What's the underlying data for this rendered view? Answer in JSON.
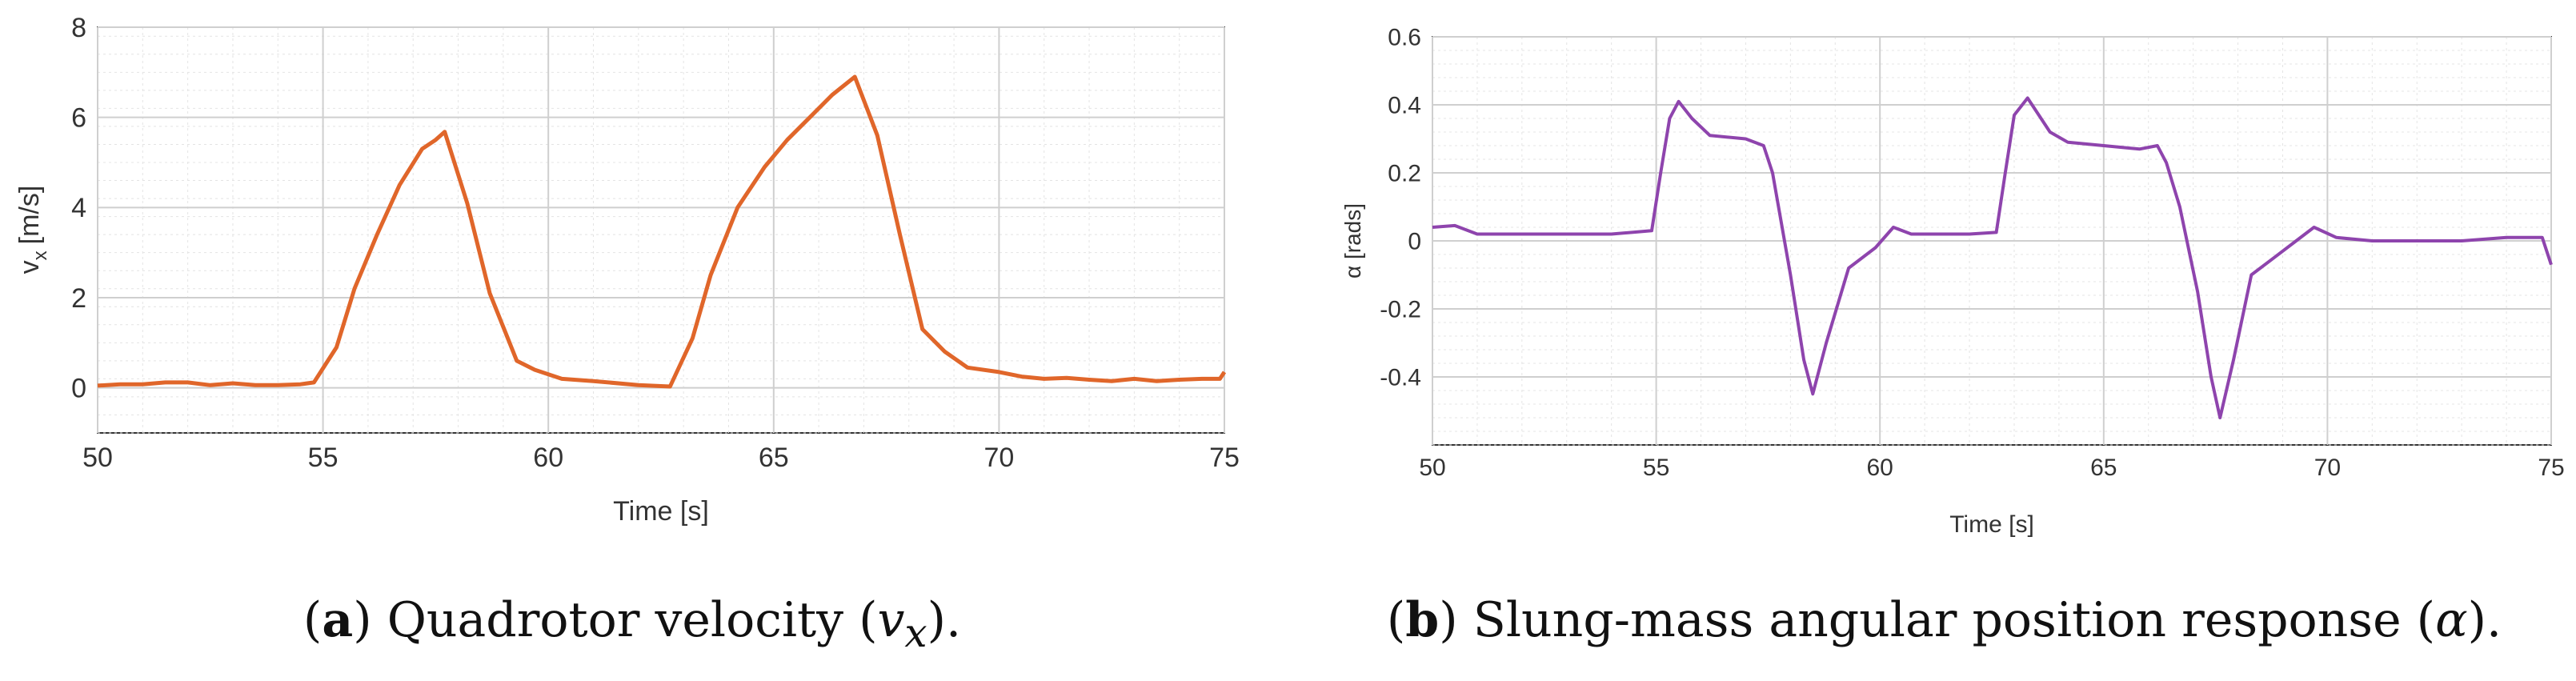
{
  "chart_data": [
    {
      "type": "line",
      "panel_label": "a",
      "caption": "Quadrotor velocity",
      "caption_symbol": "v",
      "caption_subscript": "x",
      "xlabel": "Time [s]",
      "ylabel": "v",
      "ylabel_subscript": "x",
      "ylabel_unit": "[m/s]",
      "xlim": [
        50,
        75
      ],
      "ylim": [
        -1,
        8
      ],
      "xticks": [
        50,
        55,
        60,
        65,
        70,
        75
      ],
      "yticks": [
        0,
        2,
        4,
        6,
        8
      ],
      "grid": true,
      "minor_grid": true,
      "color": "#e0662a",
      "series": [
        {
          "x": [
            50,
            50.5,
            51,
            51.5,
            52,
            52.5,
            53,
            53.5,
            54,
            54.5,
            54.8,
            55.3,
            55.7,
            56.2,
            56.7,
            57.2,
            57.5,
            57.7,
            58.2,
            58.7,
            59.3,
            59.7,
            60.3,
            61,
            62,
            62.7,
            63.2,
            63.6,
            64.2,
            64.8,
            65.3,
            65.8,
            66.3,
            66.8,
            67.3,
            67.8,
            68.3,
            68.8,
            69.3,
            70,
            70.5,
            71,
            71.5,
            72,
            72.5,
            73,
            73.5,
            74,
            74.5,
            74.9,
            75
          ],
          "y": [
            0.05,
            0.08,
            0.08,
            0.12,
            0.12,
            0.06,
            0.1,
            0.06,
            0.06,
            0.08,
            0.12,
            0.9,
            2.2,
            3.4,
            4.5,
            5.3,
            5.5,
            5.68,
            4.1,
            2.1,
            0.6,
            0.4,
            0.2,
            0.15,
            0.06,
            0.03,
            1.1,
            2.5,
            4.0,
            4.9,
            5.5,
            6.0,
            6.5,
            6.9,
            5.6,
            3.4,
            1.3,
            0.8,
            0.45,
            0.35,
            0.25,
            0.2,
            0.22,
            0.18,
            0.15,
            0.2,
            0.15,
            0.18,
            0.2,
            0.2,
            0.35
          ]
        }
      ]
    },
    {
      "type": "line",
      "panel_label": "b",
      "caption": "Slung-mass angular position response",
      "caption_symbol": "α",
      "xlabel": "Time [s]",
      "ylabel": "α [rads]",
      "xlim": [
        50,
        75
      ],
      "ylim": [
        -0.6,
        0.6
      ],
      "xticks": [
        50,
        55,
        60,
        65,
        70,
        75
      ],
      "yticks": [
        -0.4,
        -0.2,
        0,
        0.2,
        0.4,
        0.6
      ],
      "grid": true,
      "minor_grid": true,
      "color": "#8e44ad",
      "series": [
        {
          "x": [
            50,
            50.5,
            51,
            52,
            53,
            54,
            54.9,
            55.1,
            55.3,
            55.5,
            55.8,
            56.2,
            57,
            57.4,
            57.6,
            58,
            58.3,
            58.5,
            58.8,
            59.3,
            59.9,
            60.3,
            60.7,
            61.3,
            62,
            62.6,
            62.8,
            63,
            63.3,
            63.5,
            63.8,
            64.2,
            65,
            65.8,
            66.2,
            66.4,
            66.7,
            67.1,
            67.4,
            67.6,
            67.9,
            68.3,
            68.8,
            69.3,
            69.7,
            70.2,
            71,
            72,
            73,
            74,
            74.8,
            75
          ],
          "y": [
            0.04,
            0.045,
            0.02,
            0.02,
            0.02,
            0.02,
            0.03,
            0.2,
            0.36,
            0.41,
            0.36,
            0.31,
            0.3,
            0.28,
            0.2,
            -0.1,
            -0.35,
            -0.45,
            -0.3,
            -0.08,
            -0.02,
            0.04,
            0.02,
            0.02,
            0.02,
            0.025,
            0.2,
            0.37,
            0.42,
            0.38,
            0.32,
            0.29,
            0.28,
            0.27,
            0.28,
            0.23,
            0.1,
            -0.15,
            -0.4,
            -0.52,
            -0.35,
            -0.1,
            -0.05,
            0.0,
            0.04,
            0.01,
            0.0,
            0.0,
            0.0,
            0.01,
            0.01,
            -0.07
          ]
        }
      ]
    }
  ]
}
